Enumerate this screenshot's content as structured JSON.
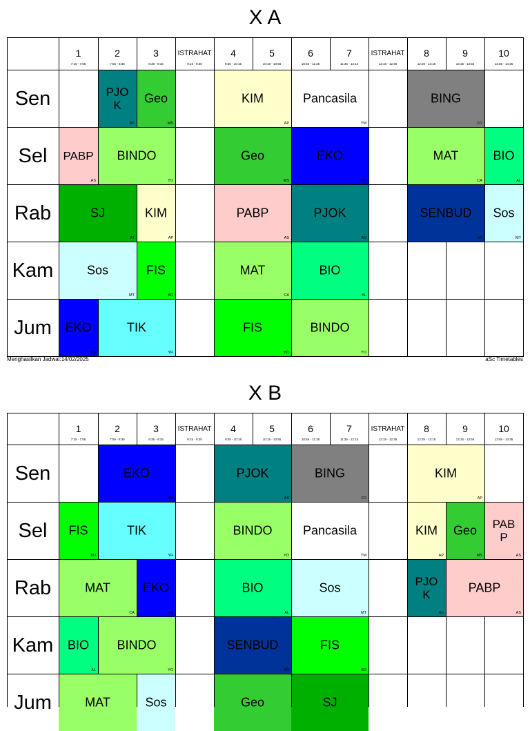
{
  "colors": {
    "teal": "#008080",
    "green": "#33cc33",
    "yellow": "#ffffcc",
    "gray": "#808080",
    "pink": "#ffcccc",
    "lightgreen": "#99ff66",
    "blue": "#0000ff",
    "mint": "#00ff80",
    "dgreen": "#00b000",
    "brgreen": "#00ff00",
    "navy": "#003399",
    "lightcyan": "#ccffff",
    "cyan": "#66ffff",
    "white": "#ffffff"
  },
  "header": {
    "periods": [
      {
        "label": "1",
        "time": "7:15 - 7:55"
      },
      {
        "label": "2",
        "time": "7:55 - 8:35"
      },
      {
        "label": "3",
        "time": "8:35 - 9:15"
      },
      {
        "label": "ISTRAHAT",
        "time": "9:15 - 9:35"
      },
      {
        "label": "4",
        "time": "9:35 - 10:15"
      },
      {
        "label": "5",
        "time": "10:15 - 10:55"
      },
      {
        "label": "6",
        "time": "10:55 - 11:35"
      },
      {
        "label": "7",
        "time": "11:35 - 12:15"
      },
      {
        "label": "ISTRAHAT",
        "time": "12:15 - 12:35"
      },
      {
        "label": "8",
        "time": "12:35 - 13:15"
      },
      {
        "label": "9",
        "time": "13:15 - 13:55"
      },
      {
        "label": "10",
        "time": "13:55 - 14:35"
      }
    ]
  },
  "footer": {
    "generated": "Menghasilkan Jadwal:14/02/2025",
    "brand": "aSc Timetables"
  },
  "classes": [
    {
      "name": "X A",
      "days": [
        {
          "day": "Sen",
          "lessons": [
            {
              "col": 1,
              "span": 1,
              "subject": "PJOK",
              "teacher": "AS",
              "color": "teal",
              "wrap": true
            },
            {
              "col": 2,
              "span": 1,
              "subject": "Geo",
              "teacher": "MS",
              "color": "green"
            },
            {
              "col": 4,
              "span": 2,
              "subject": "KIM",
              "teacher": "AP",
              "color": "yellow"
            },
            {
              "col": 6,
              "span": 2,
              "subject": "Pancasila",
              "teacher": "YM",
              "color": "white"
            },
            {
              "col": 9,
              "span": 2,
              "subject": "BING",
              "teacher": "FD",
              "color": "gray"
            }
          ]
        },
        {
          "day": "Sel",
          "lessons": [
            {
              "col": 0,
              "span": 1,
              "subject": "PABP",
              "teacher": "AS",
              "color": "pink",
              "wrap": true
            },
            {
              "col": 1,
              "span": 2,
              "subject": "BINDO",
              "teacher": "YO",
              "color": "lightgreen"
            },
            {
              "col": 4,
              "span": 2,
              "subject": "Geo",
              "teacher": "MS",
              "color": "green"
            },
            {
              "col": 6,
              "span": 2,
              "subject": "EKO",
              "teacher": "MA",
              "color": "blue"
            },
            {
              "col": 9,
              "span": 2,
              "subject": "MAT",
              "teacher": "CA",
              "color": "lightgreen"
            },
            {
              "col": 11,
              "span": 1,
              "subject": "BIO",
              "teacher": "AL",
              "color": "mint"
            }
          ]
        },
        {
          "day": "Rab",
          "lessons": [
            {
              "col": 0,
              "span": 2,
              "subject": "SJ",
              "teacher": "AT",
              "color": "dgreen"
            },
            {
              "col": 2,
              "span": 1,
              "subject": "KIM",
              "teacher": "AP",
              "color": "yellow"
            },
            {
              "col": 4,
              "span": 2,
              "subject": "PABP",
              "teacher": "AS",
              "color": "pink"
            },
            {
              "col": 6,
              "span": 2,
              "subject": "PJOK",
              "teacher": "AS",
              "color": "teal"
            },
            {
              "col": 9,
              "span": 2,
              "subject": "SENBUD",
              "teacher": "SR",
              "color": "navy"
            },
            {
              "col": 11,
              "span": 1,
              "subject": "Sos",
              "teacher": "MT",
              "color": "lightcyan"
            }
          ]
        },
        {
          "day": "Kam",
          "lessons": [
            {
              "col": 0,
              "span": 2,
              "subject": "Sos",
              "teacher": "MT",
              "color": "lightcyan"
            },
            {
              "col": 2,
              "span": 1,
              "subject": "FIS",
              "teacher": "BD",
              "color": "brgreen"
            },
            {
              "col": 4,
              "span": 2,
              "subject": "MAT",
              "teacher": "CA",
              "color": "lightgreen"
            },
            {
              "col": 6,
              "span": 2,
              "subject": "BIO",
              "teacher": "AL",
              "color": "mint"
            }
          ]
        },
        {
          "day": "Jum",
          "lessons": [
            {
              "col": 0,
              "span": 1,
              "subject": "EKO",
              "teacher": "MA",
              "color": "blue"
            },
            {
              "col": 1,
              "span": 2,
              "subject": "TIK",
              "teacher": "YR",
              "color": "cyan"
            },
            {
              "col": 4,
              "span": 2,
              "subject": "FIS",
              "teacher": "BD",
              "color": "brgreen"
            },
            {
              "col": 6,
              "span": 2,
              "subject": "BINDO",
              "teacher": "YO",
              "color": "lightgreen"
            }
          ]
        }
      ]
    },
    {
      "name": "X B",
      "days": [
        {
          "day": "Sen",
          "lessons": [
            {
              "col": 1,
              "span": 2,
              "subject": "EKO",
              "teacher": "MA",
              "color": "blue"
            },
            {
              "col": 4,
              "span": 2,
              "subject": "PJOK",
              "teacher": "AS",
              "color": "teal"
            },
            {
              "col": 6,
              "span": 2,
              "subject": "BING",
              "teacher": "FD",
              "color": "gray"
            },
            {
              "col": 9,
              "span": 2,
              "subject": "KIM",
              "teacher": "AP",
              "color": "yellow"
            }
          ]
        },
        {
          "day": "Sel",
          "lessons": [
            {
              "col": 0,
              "span": 1,
              "subject": "FIS",
              "teacher": "BD",
              "color": "brgreen"
            },
            {
              "col": 1,
              "span": 2,
              "subject": "TIK",
              "teacher": "YR",
              "color": "cyan"
            },
            {
              "col": 4,
              "span": 2,
              "subject": "BINDO",
              "teacher": "YO",
              "color": "lightgreen"
            },
            {
              "col": 6,
              "span": 2,
              "subject": "Pancasila",
              "teacher": "YM",
              "color": "white"
            },
            {
              "col": 9,
              "span": 1,
              "subject": "KIM",
              "teacher": "AP",
              "color": "yellow"
            },
            {
              "col": 10,
              "span": 1,
              "subject": "Geo",
              "teacher": "MS",
              "color": "green"
            },
            {
              "col": 11,
              "span": 1,
              "subject": "PABP",
              "teacher": "AS",
              "color": "pink",
              "wrap": true
            }
          ]
        },
        {
          "day": "Rab",
          "lessons": [
            {
              "col": 0,
              "span": 2,
              "subject": "MAT",
              "teacher": "CA",
              "color": "lightgreen"
            },
            {
              "col": 2,
              "span": 1,
              "subject": "EKO",
              "teacher": "MA",
              "color": "blue"
            },
            {
              "col": 4,
              "span": 2,
              "subject": "BIO",
              "teacher": "AL",
              "color": "mint"
            },
            {
              "col": 6,
              "span": 2,
              "subject": "Sos",
              "teacher": "MT",
              "color": "lightcyan"
            },
            {
              "col": 9,
              "span": 1,
              "subject": "PJOK",
              "teacher": "AS",
              "color": "teal",
              "wrap": true
            },
            {
              "col": 10,
              "span": 2,
              "subject": "PABP",
              "teacher": "AS",
              "color": "pink"
            }
          ]
        },
        {
          "day": "Kam",
          "lessons": [
            {
              "col": 0,
              "span": 1,
              "subject": "BIO",
              "teacher": "AL",
              "color": "mint"
            },
            {
              "col": 1,
              "span": 2,
              "subject": "BINDO",
              "teacher": "YO",
              "color": "lightgreen"
            },
            {
              "col": 4,
              "span": 2,
              "subject": "SENBUD",
              "teacher": "SR",
              "color": "navy"
            },
            {
              "col": 6,
              "span": 2,
              "subject": "FIS",
              "teacher": "BD",
              "color": "brgreen"
            }
          ]
        },
        {
          "day": "Jum",
          "lessons": [
            {
              "col": 0,
              "span": 2,
              "subject": "MAT",
              "teacher": "",
              "color": "lightgreen"
            },
            {
              "col": 2,
              "span": 1,
              "subject": "Sos",
              "teacher": "",
              "color": "lightcyan"
            },
            {
              "col": 4,
              "span": 2,
              "subject": "Geo",
              "teacher": "",
              "color": "green"
            },
            {
              "col": 6,
              "span": 2,
              "subject": "SJ",
              "teacher": "",
              "color": "dgreen"
            }
          ]
        }
      ]
    }
  ]
}
